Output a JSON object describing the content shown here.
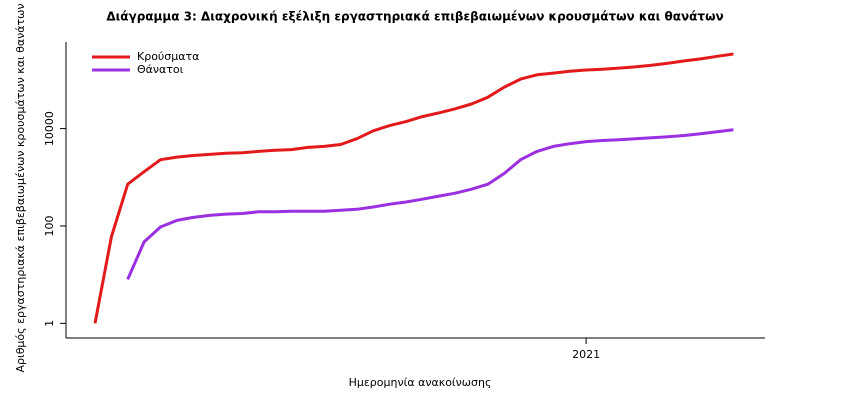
{
  "chart_data": {
    "type": "line",
    "title": "Διάγραμμα 3: Διαχρονική εξέλιξη εργαστηριακά επιβεβαιωμένων κρουσμάτων και θανάτων",
    "x_label": "Ημερομηνία ανακοίνωσης",
    "y_label": "Αριθμός εργαστηριακά επιβεβαιωμένων κρουσμάτων και θανάτων",
    "categories": [
      null,
      null,
      null,
      null,
      null,
      null,
      null,
      null,
      null,
      null,
      null,
      null,
      null,
      null,
      null,
      null,
      null,
      null,
      null,
      null,
      null,
      null,
      null,
      null,
      null,
      null,
      null,
      null,
      null,
      null,
      "2021",
      null,
      null,
      null,
      null,
      null,
      null,
      null,
      null,
      null
    ],
    "log_scale": true,
    "ylim": [
      0.5,
      600000
    ],
    "yticks": [
      1,
      100,
      10000
    ],
    "legend": "top-left",
    "series": [
      {
        "name": "Κρούσματα",
        "color": "#e31a1c",
        "values": [
          1,
          60,
          720,
          1300,
          2300,
          2600,
          2800,
          2950,
          3100,
          3200,
          3400,
          3600,
          3700,
          4100,
          4300,
          4700,
          6200,
          9000,
          11500,
          13900,
          17600,
          21000,
          25500,
          32000,
          44000,
          71000,
          104000,
          127000,
          138000,
          150000,
          160000,
          165000,
          175000,
          185000,
          200000,
          220000,
          245000,
          270000,
          305000,
          340000
        ]
      },
      {
        "name": "Θάνατοι",
        "color": "#9b30e0",
        "values": [
          null,
          null,
          8,
          47,
          95,
          130,
          150,
          165,
          175,
          180,
          195,
          195,
          200,
          200,
          200,
          210,
          220,
          245,
          280,
          310,
          355,
          410,
          470,
          570,
          720,
          1200,
          2300,
          3400,
          4300,
          4900,
          5400,
          5700,
          5900,
          6200,
          6500,
          6800,
          7200,
          7800,
          8600,
          9500
        ]
      }
    ]
  }
}
